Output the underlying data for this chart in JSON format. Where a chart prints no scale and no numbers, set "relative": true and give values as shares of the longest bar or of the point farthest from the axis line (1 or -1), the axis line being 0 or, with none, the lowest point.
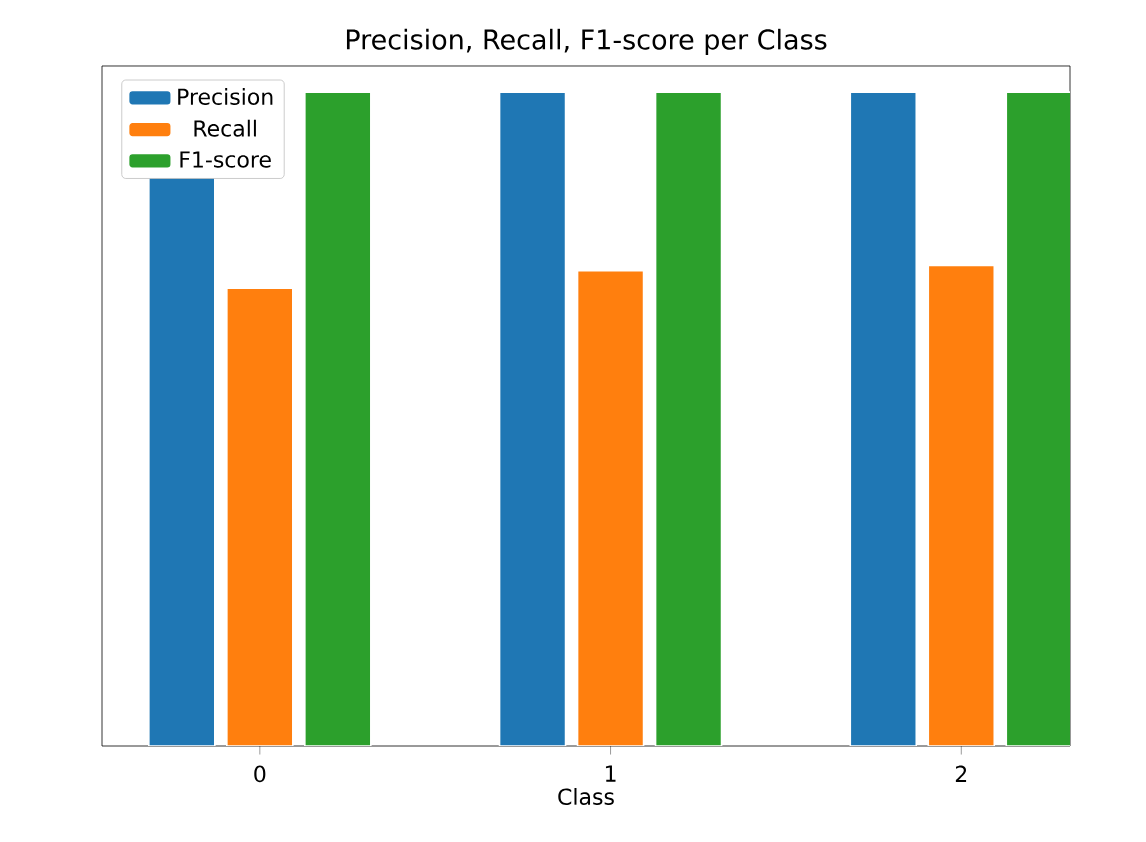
{
  "chart_data": {
    "type": "bar",
    "title": "Precision, Recall, F1-score per Class",
    "xlabel": "Class",
    "categories": [
      "0",
      "1",
      "2"
    ],
    "relative": true,
    "legend": "top left",
    "series": [
      {
        "name": "Precision",
        "color": "#1f77b4",
        "values": [
          1,
          1,
          1
        ]
      },
      {
        "name": "Recall",
        "color": "#ff7f0e",
        "values": [
          0.7,
          0.727,
          0.735
        ]
      },
      {
        "name": "F1-score",
        "color": "#2ca02c",
        "values": [
          1,
          1,
          1
        ]
      }
    ]
  }
}
